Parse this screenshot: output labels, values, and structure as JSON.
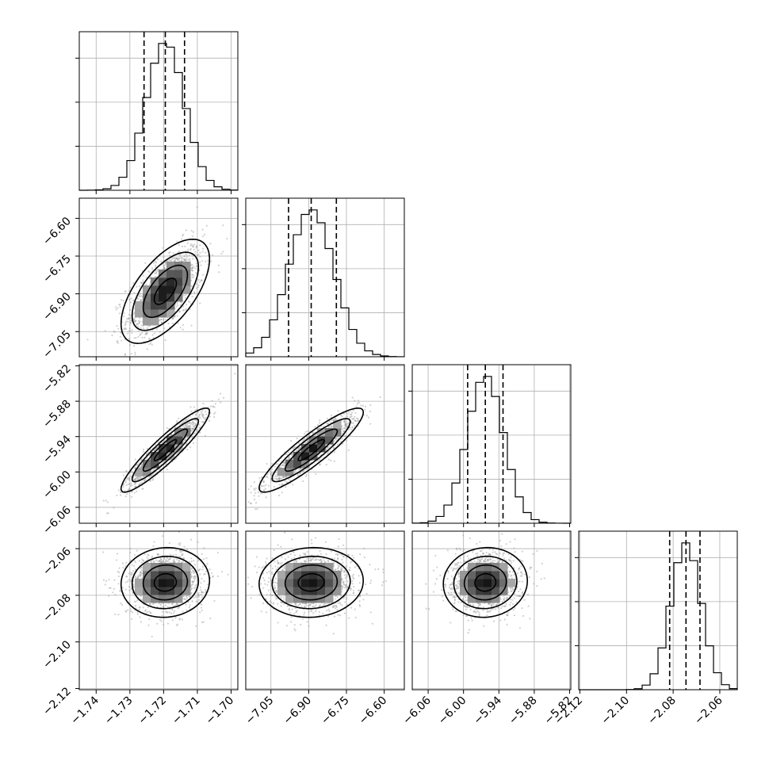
{
  "chart_data": {
    "type": "corner",
    "title": "",
    "parameters": [
      {
        "index": 0,
        "name": "",
        "range": [
          -1.745,
          -1.698
        ],
        "ticks": [
          -1.74,
          -1.73,
          -1.72,
          -1.71,
          -1.7
        ],
        "tick_labels": [
          "−1.74",
          "−1.73",
          "−1.72",
          "−1.71",
          "−1.70"
        ],
        "quantiles": [
          -1.7258,
          -1.7195,
          -1.7138
        ],
        "mean": -1.7195,
        "sigma": 0.0057
      },
      {
        "index": 1,
        "name": "",
        "range": [
          -7.15,
          -6.52
        ],
        "ticks": [
          -7.05,
          -6.9,
          -6.75,
          -6.6
        ],
        "tick_labels": [
          "−7.05",
          "−6.90",
          "−6.75",
          "−6.60"
        ],
        "quantiles": [
          -6.98,
          -6.89,
          -6.79
        ],
        "mean": -6.89,
        "sigma": 0.09
      },
      {
        "index": 2,
        "name": "",
        "range": [
          -6.087,
          -5.818
        ],
        "ticks": [
          -6.06,
          -6.0,
          -5.94,
          -5.88,
          -5.82
        ],
        "tick_labels": [
          "−6.06",
          "−6.00",
          "−5.94",
          "−5.88",
          "−5.82"
        ],
        "quantiles": [
          -5.993,
          -5.963,
          -5.933
        ],
        "mean": -5.963,
        "sigma": 0.031
      },
      {
        "index": 3,
        "name": "",
        "range": [
          -2.1205,
          -2.0525
        ],
        "ticks": [
          -2.12,
          -2.1,
          -2.08,
          -2.06
        ],
        "tick_labels": [
          "−2.12",
          "−2.10",
          "−2.08",
          "−2.06"
        ],
        "quantiles": [
          -2.0815,
          -2.0745,
          -2.0685
        ],
        "mean": -2.0745,
        "sigma": 0.0065
      }
    ],
    "correlations": [
      {
        "pair": [
          1,
          0
        ],
        "rho": 0.62
      },
      {
        "pair": [
          2,
          0
        ],
        "rho": 0.92
      },
      {
        "pair": [
          2,
          1
        ],
        "rho": 0.9
      },
      {
        "pair": [
          3,
          0
        ],
        "rho": 0.05
      },
      {
        "pair": [
          3,
          1
        ],
        "rho": 0.05
      },
      {
        "pair": [
          3,
          2
        ],
        "rho": 0.05
      }
    ],
    "histogram_bins": 20,
    "contour_levels_sigma": [
      0.5,
      1.0,
      1.5,
      2.0
    ],
    "grid": true
  }
}
